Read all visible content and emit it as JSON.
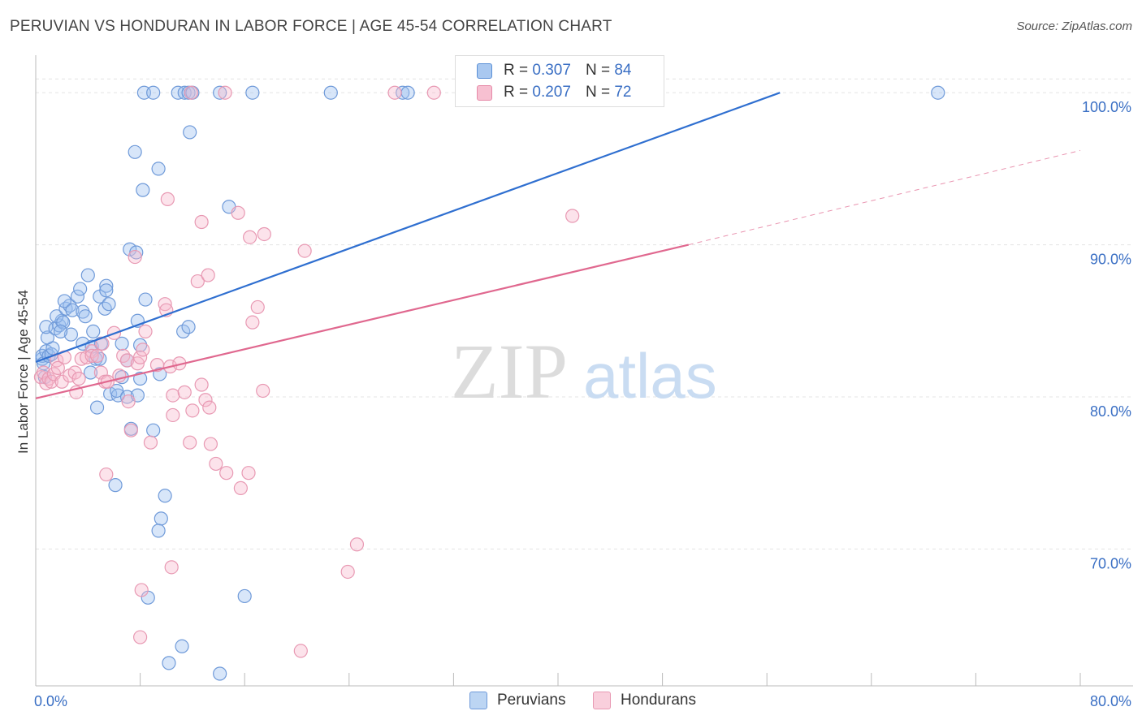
{
  "title": "PERUVIAN VS HONDURAN IN LABOR FORCE | AGE 45-54 CORRELATION CHART",
  "source": "Source: ZipAtlas.com",
  "watermark": {
    "zip": "ZIP",
    "atlas": "atlas"
  },
  "legend": {
    "r_label": "R = ",
    "n_label": "N = ",
    "rows": [
      {
        "r": "0.307",
        "n": "84",
        "color": "#a9c8f0",
        "border": "#5a8fd6"
      },
      {
        "r": "0.207",
        "n": "72",
        "color": "#f7c0d1",
        "border": "#e68aa8"
      }
    ]
  },
  "bottom_legend": [
    {
      "label": "Peruvians",
      "color": "#bcd5f3",
      "border": "#6f9ad9"
    },
    {
      "label": "Hondurans",
      "color": "#f9cfdc",
      "border": "#e899b3"
    }
  ],
  "chart_data": {
    "type": "scatter",
    "xlabel": "",
    "ylabel": "In Labor Force | Age 45-54",
    "xlim": [
      0,
      80
    ],
    "ylim": [
      61,
      103
    ],
    "x_tick_labels": [
      "0.0%",
      "80.0%"
    ],
    "y_ticks": [
      70,
      80,
      90,
      100
    ],
    "y_tick_labels": [
      "70.0%",
      "80.0%",
      "90.0%",
      "100.0%"
    ],
    "grid": true,
    "series": [
      {
        "name": "Peruvians",
        "color": "#6f9ad9",
        "fill": "rgba(158,193,240,0.40)",
        "trend": {
          "x0": 0,
          "y0": 82.3,
          "x1": 57.0,
          "y1": 100,
          "style": "solid",
          "color": "#2f6fd0"
        },
        "points": [
          [
            0.5,
            82.5
          ],
          [
            0.5,
            82.7
          ],
          [
            0.6,
            82.2
          ],
          [
            0.7,
            81.3
          ],
          [
            0.8,
            83.0
          ],
          [
            1.0,
            82.7
          ],
          [
            1.2,
            82.8
          ],
          [
            1.3,
            83.2
          ],
          [
            0.9,
            83.9
          ],
          [
            0.8,
            84.6
          ],
          [
            1.5,
            84.5
          ],
          [
            1.8,
            84.7
          ],
          [
            2.0,
            85.0
          ],
          [
            1.6,
            85.3
          ],
          [
            2.3,
            85.8
          ],
          [
            2.6,
            86.0
          ],
          [
            2.2,
            86.3
          ],
          [
            3.2,
            86.6
          ],
          [
            2.8,
            85.7
          ],
          [
            3.6,
            85.6
          ],
          [
            3.4,
            87.1
          ],
          [
            3.8,
            85.3
          ],
          [
            2.1,
            84.9
          ],
          [
            2.7,
            84.1
          ],
          [
            1.9,
            84.3
          ],
          [
            4.0,
            88.0
          ],
          [
            4.4,
            84.3
          ],
          [
            4.9,
            86.6
          ],
          [
            5.3,
            85.8
          ],
          [
            5.4,
            87.3
          ],
          [
            5.4,
            87.0
          ],
          [
            5.6,
            86.1
          ],
          [
            3.6,
            83.5
          ],
          [
            4.2,
            81.6
          ],
          [
            4.6,
            82.5
          ],
          [
            4.9,
            82.5
          ],
          [
            4.3,
            83.3
          ],
          [
            5.0,
            83.5
          ],
          [
            4.7,
            79.3
          ],
          [
            6.6,
            83.5
          ],
          [
            5.7,
            80.2
          ],
          [
            6.3,
            80.1
          ],
          [
            6.2,
            80.4
          ],
          [
            7.0,
            80.0
          ],
          [
            7.8,
            80.1
          ],
          [
            6.6,
            81.3
          ],
          [
            7.0,
            82.4
          ],
          [
            8.0,
            81.2
          ],
          [
            7.3,
            77.9
          ],
          [
            7.8,
            85.0
          ],
          [
            7.2,
            89.7
          ],
          [
            7.7,
            89.5
          ],
          [
            8.4,
            86.4
          ],
          [
            8.0,
            83.4
          ],
          [
            9.0,
            77.8
          ],
          [
            9.5,
            81.5
          ],
          [
            9.9,
            73.5
          ],
          [
            9.6,
            72.0
          ],
          [
            9.4,
            71.2
          ],
          [
            8.6,
            66.8
          ],
          [
            11.3,
            84.3
          ],
          [
            11.7,
            84.6
          ],
          [
            11.8,
            97.4
          ],
          [
            8.3,
            100
          ],
          [
            9.0,
            100
          ],
          [
            10.9,
            100
          ],
          [
            11.4,
            100
          ],
          [
            11.7,
            100
          ],
          [
            12.0,
            100
          ],
          [
            14.1,
            100
          ],
          [
            16.6,
            100
          ],
          [
            22.6,
            100
          ],
          [
            28.1,
            100
          ],
          [
            28.5,
            100
          ],
          [
            69.1,
            100
          ],
          [
            7.6,
            96.1
          ],
          [
            9.4,
            95.0
          ],
          [
            8.2,
            93.6
          ],
          [
            14.8,
            92.5
          ],
          [
            16.0,
            66.9
          ],
          [
            10.2,
            62.5
          ],
          [
            11.2,
            63.6
          ],
          [
            14.1,
            61.8
          ],
          [
            6.1,
            74.2
          ]
        ]
      },
      {
        "name": "Hondurans",
        "color": "#e899b3",
        "fill": "rgba(247,184,204,0.40)",
        "trend": {
          "x0": 0,
          "y0": 79.9,
          "x1": 50.0,
          "y1": 90.0,
          "style": "solid",
          "color": "#e0688f",
          "ext_x1": 80.0,
          "ext_y1": 96.2
        },
        "points": [
          [
            0.4,
            81.3
          ],
          [
            0.6,
            81.6
          ],
          [
            0.8,
            80.9
          ],
          [
            1.0,
            81.2
          ],
          [
            1.2,
            81.0
          ],
          [
            1.4,
            81.5
          ],
          [
            1.6,
            82.4
          ],
          [
            1.7,
            81.9
          ],
          [
            2.0,
            81.0
          ],
          [
            2.2,
            82.6
          ],
          [
            2.6,
            81.4
          ],
          [
            3.0,
            81.6
          ],
          [
            3.1,
            80.3
          ],
          [
            3.3,
            81.2
          ],
          [
            3.5,
            82.5
          ],
          [
            3.9,
            82.6
          ],
          [
            4.3,
            83.0
          ],
          [
            4.3,
            82.7
          ],
          [
            4.7,
            82.7
          ],
          [
            5.0,
            81.6
          ],
          [
            5.3,
            81.0
          ],
          [
            5.5,
            81.0
          ],
          [
            5.1,
            83.5
          ],
          [
            6.0,
            84.2
          ],
          [
            6.4,
            81.4
          ],
          [
            6.7,
            82.7
          ],
          [
            7.0,
            82.4
          ],
          [
            7.1,
            79.7
          ],
          [
            7.3,
            77.8
          ],
          [
            7.8,
            82.2
          ],
          [
            8.0,
            82.6
          ],
          [
            8.2,
            83.1
          ],
          [
            8.4,
            84.3
          ],
          [
            8.8,
            77.0
          ],
          [
            7.6,
            89.2
          ],
          [
            9.3,
            82.1
          ],
          [
            9.9,
            86.1
          ],
          [
            10.0,
            85.7
          ],
          [
            10.3,
            82.0
          ],
          [
            10.5,
            80.1
          ],
          [
            10.5,
            78.8
          ],
          [
            11.0,
            82.2
          ],
          [
            11.4,
            80.3
          ],
          [
            11.8,
            77.0
          ],
          [
            12.0,
            79.1
          ],
          [
            12.4,
            87.6
          ],
          [
            12.7,
            80.8
          ],
          [
            13.0,
            79.8
          ],
          [
            13.3,
            79.3
          ],
          [
            13.4,
            76.9
          ],
          [
            13.8,
            75.6
          ],
          [
            14.6,
            75.0
          ],
          [
            15.7,
            74.0
          ],
          [
            16.3,
            75.0
          ],
          [
            17.0,
            85.9
          ],
          [
            16.6,
            84.9
          ],
          [
            17.4,
            80.4
          ],
          [
            17.5,
            90.7
          ],
          [
            20.6,
            89.6
          ],
          [
            16.4,
            90.5
          ],
          [
            15.5,
            92.1
          ],
          [
            12.7,
            91.5
          ],
          [
            10.1,
            93.0
          ],
          [
            13.2,
            88.0
          ],
          [
            41.1,
            91.9
          ],
          [
            5.4,
            74.9
          ],
          [
            8.1,
            67.3
          ],
          [
            10.4,
            68.8
          ],
          [
            8.0,
            64.2
          ],
          [
            24.6,
            70.3
          ],
          [
            23.9,
            68.5
          ],
          [
            20.3,
            63.3
          ]
        ]
      }
    ],
    "top_strip_points": {
      "Hondurans": [
        [
          11.9,
          100
        ],
        [
          14.5,
          100
        ],
        [
          27.5,
          100
        ],
        [
          30.5,
          100
        ]
      ]
    }
  }
}
